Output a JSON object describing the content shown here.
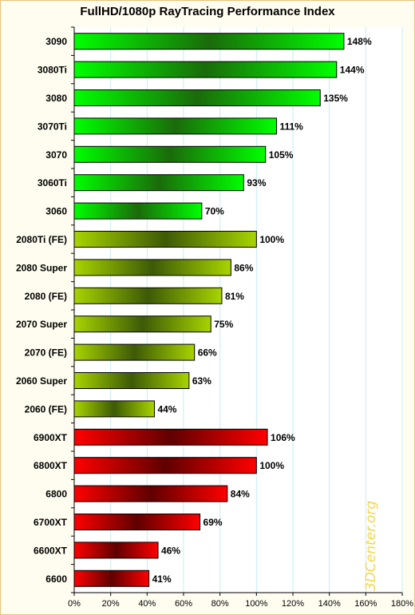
{
  "chart_data": {
    "type": "bar",
    "orientation": "horizontal",
    "title": "FullHD/1080p RayTracing Performance Index",
    "categories": [
      "3090",
      "3080Ti",
      "3080",
      "3070Ti",
      "3070",
      "3060Ti",
      "3060",
      "2080Ti (FE)",
      "2080 Super",
      "2080 (FE)",
      "2070 Super",
      "2070 (FE)",
      "2060 Super",
      "2060 (FE)",
      "6900XT",
      "6800XT",
      "6800",
      "6700XT",
      "6600XT",
      "6600"
    ],
    "values": [
      148,
      144,
      135,
      111,
      105,
      93,
      70,
      100,
      86,
      81,
      75,
      66,
      63,
      44,
      106,
      100,
      84,
      69,
      46,
      41
    ],
    "value_labels": [
      "148%",
      "144%",
      "135%",
      "111%",
      "105%",
      "93%",
      "70%",
      "100%",
      "86%",
      "81%",
      "75%",
      "66%",
      "63%",
      "44%",
      "106%",
      "100%",
      "84%",
      "69%",
      "46%",
      "41%"
    ],
    "groups": [
      "nv",
      "nv",
      "nv",
      "nv",
      "nv",
      "nv",
      "nv",
      "turing",
      "turing",
      "turing",
      "turing",
      "turing",
      "turing",
      "turing",
      "amd",
      "amd",
      "amd",
      "amd",
      "amd",
      "amd"
    ],
    "group_colors": {
      "nv": {
        "edge": "#00ff00",
        "center": "#1a6b0a"
      },
      "turing": {
        "edge": "#a8d400",
        "center": "#3d5a06"
      },
      "amd": {
        "edge": "#ff0000",
        "center": "#600000"
      }
    },
    "xlim": [
      0,
      180
    ],
    "xticks": [
      0,
      20,
      40,
      60,
      80,
      100,
      120,
      140,
      160,
      180
    ],
    "xtick_labels": [
      "0%",
      "20%",
      "40%",
      "60%",
      "80%",
      "100%",
      "120%",
      "140%",
      "160%",
      "180%"
    ],
    "grid": true,
    "watermark": "3DCenter.org"
  }
}
